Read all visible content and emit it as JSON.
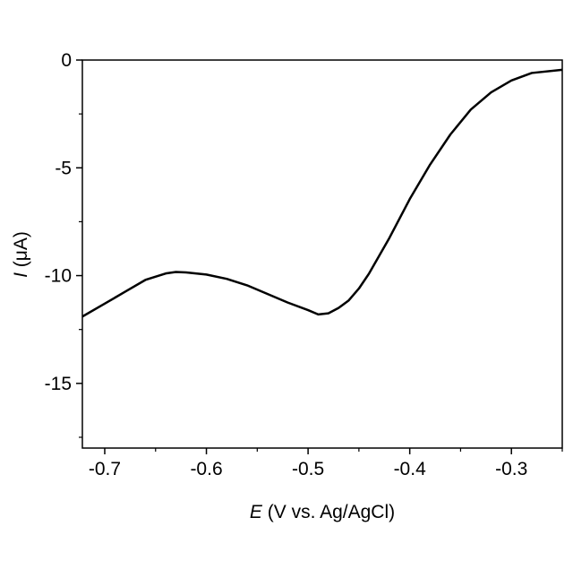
{
  "chart_data": {
    "type": "line",
    "xlabel_symbol": "E",
    "xlabel_unit": "(V vs. Ag/AgCl)",
    "ylabel_symbol": "I",
    "ylabel_unit": "(μA)",
    "xlim": [
      -0.722,
      -0.25
    ],
    "ylim": [
      -18,
      0
    ],
    "xticks": [
      -0.7,
      -0.6,
      -0.5,
      -0.4,
      -0.3
    ],
    "xminorticks": [
      -0.65,
      -0.55,
      -0.45,
      -0.35,
      -0.25
    ],
    "yticks": [
      0,
      -5,
      -10,
      -15
    ],
    "yminorticks": [
      -2.5,
      -7.5,
      -12.5,
      -17.5
    ],
    "grid": false,
    "series": [
      {
        "color": "#000000",
        "x": [
          -0.722,
          -0.7,
          -0.68,
          -0.66,
          -0.64,
          -0.63,
          -0.62,
          -0.6,
          -0.58,
          -0.56,
          -0.54,
          -0.52,
          -0.5,
          -0.49,
          -0.48,
          -0.47,
          -0.46,
          -0.45,
          -0.44,
          -0.42,
          -0.4,
          -0.38,
          -0.36,
          -0.34,
          -0.32,
          -0.3,
          -0.28,
          -0.25
        ],
        "values": [
          -11.9,
          -11.3,
          -10.75,
          -10.2,
          -9.9,
          -9.83,
          -9.85,
          -9.95,
          -10.15,
          -10.45,
          -10.85,
          -11.25,
          -11.6,
          -11.8,
          -11.75,
          -11.5,
          -11.15,
          -10.6,
          -9.9,
          -8.25,
          -6.45,
          -4.85,
          -3.45,
          -2.3,
          -1.5,
          -0.95,
          -0.6,
          -0.45
        ]
      }
    ]
  }
}
